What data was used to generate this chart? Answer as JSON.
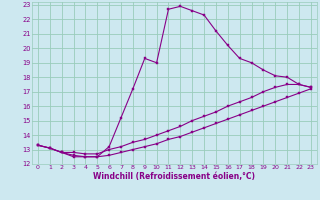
{
  "xlabel": "Windchill (Refroidissement éolien,°C)",
  "background_color": "#cde8f0",
  "grid_color": "#99ccbb",
  "line_color": "#880088",
  "xlim": [
    -0.5,
    23.5
  ],
  "ylim": [
    12,
    23.2
  ],
  "xticks": [
    0,
    1,
    2,
    3,
    4,
    5,
    6,
    7,
    8,
    9,
    10,
    11,
    12,
    13,
    14,
    15,
    16,
    17,
    18,
    19,
    20,
    21,
    22,
    23
  ],
  "yticks": [
    12,
    13,
    14,
    15,
    16,
    17,
    18,
    19,
    20,
    21,
    22,
    23
  ],
  "line1_x": [
    0,
    1,
    2,
    3,
    4,
    5,
    6,
    7,
    8,
    9,
    10,
    11,
    12,
    13,
    14,
    15,
    16,
    17,
    18,
    19,
    20,
    21,
    22,
    23
  ],
  "line1_y": [
    13.3,
    13.1,
    12.8,
    12.5,
    12.5,
    12.5,
    13.2,
    15.2,
    17.2,
    19.3,
    19.0,
    22.7,
    22.9,
    22.6,
    22.3,
    21.2,
    20.2,
    19.3,
    19.0,
    18.5,
    18.1,
    18.0,
    17.5,
    17.3
  ],
  "line2_x": [
    0,
    1,
    2,
    3,
    4,
    5,
    6,
    7,
    8,
    9,
    10,
    11,
    12,
    13,
    14,
    15,
    16,
    17,
    18,
    19,
    20,
    21,
    22,
    23
  ],
  "line2_y": [
    13.3,
    13.1,
    12.8,
    12.8,
    12.7,
    12.7,
    13.0,
    13.2,
    13.5,
    13.7,
    14.0,
    14.3,
    14.6,
    15.0,
    15.3,
    15.6,
    16.0,
    16.3,
    16.6,
    17.0,
    17.3,
    17.5,
    17.5,
    17.3
  ],
  "line3_x": [
    0,
    1,
    2,
    3,
    4,
    5,
    6,
    7,
    8,
    9,
    10,
    11,
    12,
    13,
    14,
    15,
    16,
    17,
    18,
    19,
    20,
    21,
    22,
    23
  ],
  "line3_y": [
    13.3,
    13.1,
    12.8,
    12.6,
    12.5,
    12.5,
    12.6,
    12.8,
    13.0,
    13.2,
    13.4,
    13.7,
    13.9,
    14.2,
    14.5,
    14.8,
    15.1,
    15.4,
    15.7,
    16.0,
    16.3,
    16.6,
    16.9,
    17.2
  ]
}
